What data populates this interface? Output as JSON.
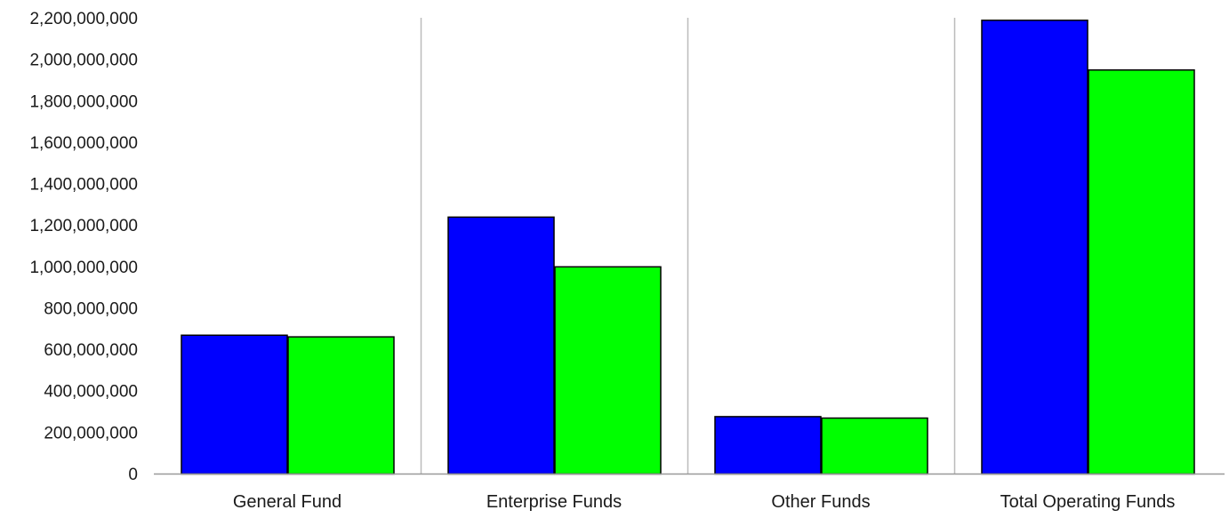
{
  "chart_data": {
    "type": "bar",
    "title": "",
    "xlabel": "",
    "ylabel": "",
    "categories": [
      "General Fund",
      "Enterprise Funds",
      "Other Funds",
      "Total Operating Funds"
    ],
    "series": [
      {
        "color": "#0000ff",
        "values": [
          670000000,
          1240000000,
          277000000,
          2190000000
        ]
      },
      {
        "color": "#00ff00",
        "values": [
          662000000,
          1000000000,
          270000000,
          1950000000
        ]
      }
    ],
    "ylim": [
      0,
      2200000000
    ],
    "yticks": [
      0,
      200000000,
      400000000,
      600000000,
      800000000,
      1000000000,
      1200000000,
      1400000000,
      1600000000,
      1800000000,
      2000000000,
      2200000000
    ],
    "ytick_labels": [
      "0",
      "200,000,000",
      "400,000,000",
      "600,000,000",
      "800,000,000",
      "1,000,000,000",
      "1,200,000,000",
      "1,400,000,000",
      "1,600,000,000",
      "1,800,000,000",
      "2,000,000,000",
      "2,200,000,000"
    ],
    "grid": "vertical category separators",
    "legend": "none",
    "colors": {
      "axis": "#999999",
      "separator": "#bbbbbb",
      "bar_outline": "#000000"
    }
  }
}
